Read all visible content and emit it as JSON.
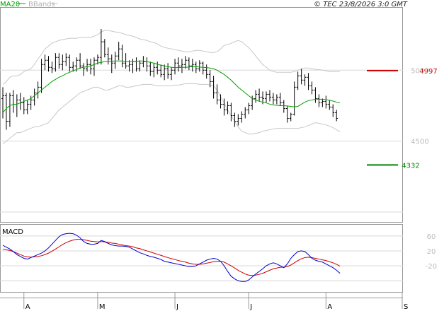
{
  "header": {
    "legend_ma": "MA20",
    "legend_bb": "BBands",
    "copyright": "© TEC 23/8/2026 3:0 GMT"
  },
  "colors": {
    "bars": "#000000",
    "ma20": "#00a000",
    "bbands": "#c8c8c8",
    "resistance": "#cc0000",
    "support": "#008800",
    "macd": "#0000cc",
    "signal": "#cc0000",
    "grid": "#d8d8d8"
  },
  "chart_data": [
    {
      "type": "ohlc",
      "y_ticks": [
        {
          "value": 5000,
          "label": "5000"
        },
        {
          "value": 4500,
          "label": "4500"
        }
      ],
      "ylim": [
        3930,
        5440
      ],
      "resistance": {
        "value": 4997,
        "label": "4997"
      },
      "support": {
        "value": 4332,
        "label": "4332"
      },
      "x_labels": [
        "A",
        "M",
        "J",
        "J",
        "A",
        "S"
      ],
      "x_label_index": [
        6,
        27,
        49,
        70,
        92,
        114
      ],
      "ohlc": [
        [
          4800,
          4880,
          4660,
          4820
        ],
        [
          4820,
          4840,
          4580,
          4640
        ],
        [
          4640,
          4840,
          4600,
          4820
        ],
        [
          4820,
          4860,
          4700,
          4760
        ],
        [
          4760,
          4830,
          4670,
          4790
        ],
        [
          4790,
          4840,
          4720,
          4770
        ],
        [
          4770,
          4810,
          4690,
          4720
        ],
        [
          4720,
          4790,
          4690,
          4760
        ],
        [
          4760,
          4820,
          4720,
          4790
        ],
        [
          4790,
          4870,
          4750,
          4840
        ],
        [
          4840,
          4920,
          4800,
          4880
        ],
        [
          4880,
          5080,
          4840,
          5040
        ],
        [
          5040,
          5110,
          5000,
          5070
        ],
        [
          5070,
          5100,
          4990,
          5020
        ],
        [
          5020,
          5060,
          4980,
          5010
        ],
        [
          5010,
          5120,
          4990,
          5090
        ],
        [
          5090,
          5120,
          5010,
          5040
        ],
        [
          5040,
          5110,
          5000,
          5060
        ],
        [
          5060,
          5120,
          5030,
          5090
        ],
        [
          5090,
          5110,
          4990,
          5020
        ],
        [
          5020,
          5060,
          4990,
          5030
        ],
        [
          5030,
          5090,
          4990,
          5070
        ],
        [
          5070,
          5120,
          5010,
          5030
        ],
        [
          5030,
          5050,
          4960,
          5010
        ],
        [
          5010,
          5080,
          4990,
          5040
        ],
        [
          5040,
          5080,
          4970,
          5010
        ],
        [
          5010,
          5090,
          4960,
          5070
        ],
        [
          5070,
          5110,
          5040,
          5090
        ],
        [
          5090,
          5290,
          5040,
          5200
        ],
        [
          5200,
          5220,
          5090,
          5110
        ],
        [
          5110,
          5160,
          5040,
          5080
        ],
        [
          5080,
          5110,
          4980,
          5050
        ],
        [
          5050,
          5130,
          5010,
          5100
        ],
        [
          5100,
          5200,
          5070,
          5150
        ],
        [
          5150,
          5180,
          5020,
          5050
        ],
        [
          5050,
          5120,
          5010,
          5030
        ],
        [
          5030,
          5070,
          4990,
          5040
        ],
        [
          5040,
          5080,
          4980,
          5060
        ],
        [
          5060,
          5090,
          4990,
          5010
        ],
        [
          5010,
          5070,
          4990,
          5050
        ],
        [
          5050,
          5100,
          5020,
          5060
        ],
        [
          5060,
          5090,
          4990,
          5030
        ],
        [
          5030,
          5060,
          4960,
          4990
        ],
        [
          4990,
          5050,
          4950,
          5020
        ],
        [
          5020,
          5060,
          4970,
          5000
        ],
        [
          5000,
          5040,
          4950,
          4970
        ],
        [
          4970,
          5040,
          4930,
          5010
        ],
        [
          5010,
          5050,
          4940,
          4970
        ],
        [
          4970,
          5020,
          4930,
          5000
        ],
        [
          5000,
          5080,
          4970,
          5050
        ],
        [
          5050,
          5090,
          4990,
          5030
        ],
        [
          5030,
          5080,
          4980,
          5040
        ],
        [
          5040,
          5100,
          5010,
          5070
        ],
        [
          5070,
          5090,
          5000,
          5030
        ],
        [
          5030,
          5080,
          4990,
          5040
        ],
        [
          5040,
          5060,
          4980,
          5010
        ],
        [
          5010,
          5070,
          4990,
          5050
        ],
        [
          5050,
          5060,
          4970,
          5000
        ],
        [
          5000,
          5040,
          4940,
          4970
        ],
        [
          4970,
          5000,
          4880,
          4920
        ],
        [
          4920,
          4960,
          4800,
          4840
        ],
        [
          4840,
          4900,
          4760,
          4790
        ],
        [
          4790,
          4830,
          4730,
          4760
        ],
        [
          4760,
          4800,
          4680,
          4720
        ],
        [
          4720,
          4780,
          4690,
          4750
        ],
        [
          4750,
          4770,
          4640,
          4680
        ],
        [
          4680,
          4700,
          4600,
          4640
        ],
        [
          4640,
          4690,
          4610,
          4660
        ],
        [
          4660,
          4710,
          4630,
          4690
        ],
        [
          4690,
          4740,
          4660,
          4720
        ],
        [
          4720,
          4770,
          4690,
          4750
        ],
        [
          4750,
          4820,
          4720,
          4800
        ],
        [
          4800,
          4860,
          4770,
          4830
        ],
        [
          4830,
          4870,
          4780,
          4810
        ],
        [
          4810,
          4850,
          4760,
          4800
        ],
        [
          4800,
          4850,
          4770,
          4830
        ],
        [
          4830,
          4860,
          4780,
          4810
        ],
        [
          4810,
          4840,
          4760,
          4790
        ],
        [
          4790,
          4830,
          4760,
          4810
        ],
        [
          4810,
          4840,
          4750,
          4770
        ],
        [
          4770,
          4790,
          4700,
          4730
        ],
        [
          4730,
          4750,
          4630,
          4660
        ],
        [
          4660,
          4700,
          4640,
          4690
        ],
        [
          4690,
          4920,
          4680,
          4880
        ],
        [
          4880,
          4990,
          4860,
          4960
        ],
        [
          4960,
          5010,
          4900,
          4930
        ],
        [
          4930,
          4970,
          4890,
          4950
        ],
        [
          4950,
          4980,
          4860,
          4890
        ],
        [
          4890,
          4920,
          4830,
          4860
        ],
        [
          4860,
          4880,
          4770,
          4800
        ],
        [
          4800,
          4830,
          4740,
          4770
        ],
        [
          4770,
          4800,
          4740,
          4780
        ],
        [
          4780,
          4820,
          4730,
          4760
        ],
        [
          4760,
          4790,
          4720,
          4740
        ],
        [
          4740,
          4760,
          4670,
          4700
        ],
        [
          4700,
          4720,
          4640,
          4660
        ]
      ],
      "ma20": [
        4700,
        4730,
        4750,
        4760,
        4760,
        4770,
        4780,
        4790,
        4800,
        4820,
        4840,
        4860,
        4880,
        4900,
        4920,
        4935,
        4950,
        4960,
        4975,
        4985,
        4995,
        5005,
        5015,
        5020,
        5025,
        5030,
        5040,
        5050,
        5055,
        5060,
        5062,
        5063,
        5065,
        5065,
        5065,
        5062,
        5060,
        5060,
        5062,
        5065,
        5065,
        5060,
        5055,
        5050,
        5042,
        5035,
        5030,
        5025,
        5020,
        5018,
        5018,
        5020,
        5020,
        5022,
        5025,
        5025,
        5022,
        5020,
        5018,
        5015,
        5010,
        5000,
        4985,
        4970,
        4950,
        4930,
        4905,
        4880,
        4860,
        4840,
        4820,
        4800,
        4790,
        4780,
        4775,
        4770,
        4760,
        4755,
        4752,
        4750,
        4750,
        4748,
        4745,
        4742,
        4745,
        4760,
        4775,
        4785,
        4790,
        4795,
        4795,
        4795,
        4792,
        4788,
        4782,
        4775,
        4770
      ],
      "bb_upper": [
        4900,
        4920,
        4950,
        4960,
        4960,
        4970,
        4990,
        5000,
        5010,
        5040,
        5080,
        5110,
        5150,
        5170,
        5190,
        5200,
        5210,
        5215,
        5220,
        5225,
        5225,
        5225,
        5230,
        5230,
        5230,
        5230,
        5240,
        5250,
        5270,
        5280,
        5280,
        5275,
        5270,
        5265,
        5260,
        5250,
        5245,
        5240,
        5230,
        5220,
        5215,
        5210,
        5200,
        5195,
        5185,
        5170,
        5160,
        5155,
        5150,
        5145,
        5140,
        5135,
        5130,
        5130,
        5135,
        5140,
        5140,
        5135,
        5130,
        5125,
        5125,
        5130,
        5150,
        5175,
        5180,
        5190,
        5200,
        5210,
        5200,
        5180,
        5160,
        5130,
        5100,
        5070,
        5040,
        5020,
        5000,
        4990,
        4985,
        4985,
        4985,
        4985,
        4985,
        4990,
        5000,
        5010,
        5015,
        5015,
        5010,
        5005,
        5005,
        5000,
        4995,
        4990,
        4990,
        4990,
        4990
      ],
      "bb_lower": [
        4480,
        4500,
        4520,
        4540,
        4560,
        4560,
        4570,
        4580,
        4590,
        4600,
        4600,
        4610,
        4620,
        4630,
        4660,
        4690,
        4720,
        4740,
        4760,
        4780,
        4800,
        4820,
        4840,
        4850,
        4860,
        4870,
        4880,
        4880,
        4870,
        4860,
        4860,
        4870,
        4880,
        4890,
        4890,
        4880,
        4880,
        4885,
        4890,
        4895,
        4900,
        4900,
        4900,
        4895,
        4890,
        4890,
        4890,
        4890,
        4890,
        4895,
        4895,
        4900,
        4905,
        4905,
        4905,
        4905,
        4900,
        4900,
        4900,
        4895,
        4890,
        4860,
        4810,
        4770,
        4720,
        4680,
        4640,
        4600,
        4570,
        4560,
        4550,
        4550,
        4555,
        4560,
        4570,
        4575,
        4580,
        4585,
        4590,
        4590,
        4590,
        4590,
        4590,
        4590,
        4590,
        4595,
        4600,
        4610,
        4620,
        4630,
        4625,
        4620,
        4615,
        4605,
        4595,
        4580,
        4565
      ]
    },
    {
      "type": "line",
      "series": [
        {
          "name": "MACD"
        },
        {
          "name": ""
        }
      ],
      "title": "MACD",
      "y_ticks": [
        {
          "value": 60,
          "label": "60"
        },
        {
          "value": 20,
          "label": "20"
        },
        {
          "value": -20,
          "label": "-20"
        }
      ],
      "ylim": [
        -90,
        90
      ],
      "macd": [
        35,
        30,
        25,
        18,
        10,
        5,
        0,
        -2,
        2,
        6,
        10,
        14,
        20,
        28,
        38,
        48,
        58,
        64,
        66,
        67,
        66,
        62,
        55,
        45,
        40,
        38,
        38,
        40,
        48,
        45,
        40,
        36,
        34,
        33,
        33,
        32,
        30,
        25,
        20,
        15,
        12,
        8,
        5,
        3,
        0,
        -3,
        -8,
        -10,
        -12,
        -14,
        -16,
        -18,
        -20,
        -22,
        -22,
        -20,
        -15,
        -10,
        -5,
        -2,
        0,
        -2,
        -8,
        -20,
        -35,
        -48,
        -55,
        -60,
        -62,
        -62,
        -58,
        -50,
        -42,
        -35,
        -28,
        -20,
        -15,
        -12,
        -15,
        -20,
        -25,
        -15,
        0,
        10,
        18,
        20,
        18,
        10,
        0,
        -5,
        -8,
        -10,
        -15,
        -20,
        -25,
        -32,
        -40
      ],
      "signal": [
        25,
        23,
        21,
        18,
        14,
        10,
        6,
        4,
        3,
        4,
        5,
        7,
        10,
        14,
        19,
        25,
        31,
        37,
        42,
        46,
        49,
        51,
        51,
        50,
        48,
        46,
        45,
        44,
        45,
        44,
        43,
        41,
        40,
        38,
        36,
        34,
        33,
        31,
        28,
        26,
        23,
        20,
        17,
        14,
        11,
        8,
        5,
        2,
        -1,
        -3,
        -6,
        -8,
        -10,
        -13,
        -15,
        -16,
        -16,
        -15,
        -13,
        -11,
        -9,
        -8,
        -8,
        -10,
        -15,
        -20,
        -26,
        -32,
        -37,
        -42,
        -45,
        -46,
        -45,
        -43,
        -40,
        -36,
        -32,
        -28,
        -26,
        -24,
        -24,
        -22,
        -18,
        -12,
        -6,
        -1,
        2,
        3,
        2,
        0,
        -2,
        -4,
        -6,
        -9,
        -12,
        -16,
        -21
      ]
    }
  ]
}
